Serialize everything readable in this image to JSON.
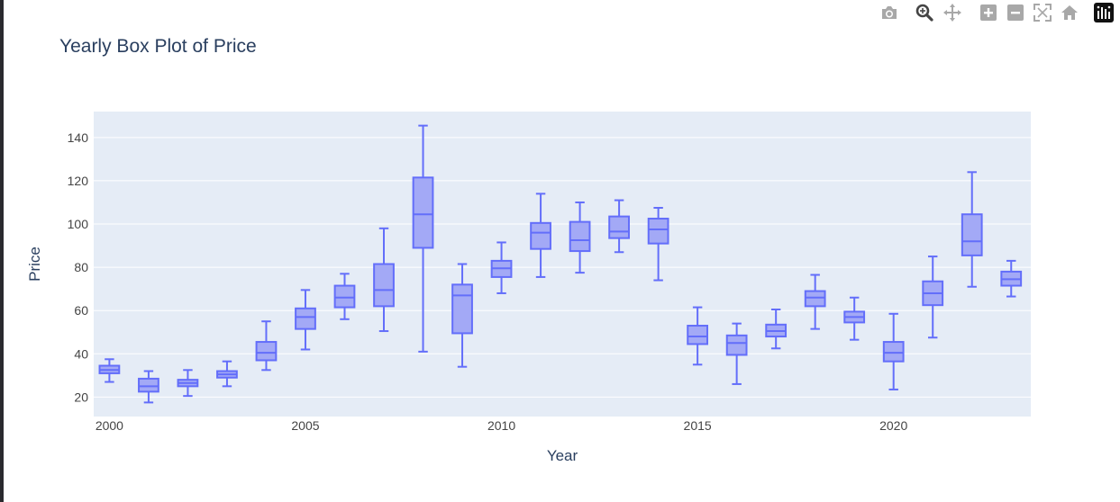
{
  "modebar": {
    "icons": [
      "camera-icon",
      "zoom-icon",
      "pan-icon",
      "zoom-in-icon",
      "zoom-out-icon",
      "autoscale-icon",
      "home-icon",
      "plotly-logo-icon"
    ]
  },
  "colors": {
    "box_line": "#636efa",
    "box_fill": "#a3a9f6",
    "plot_bg": "#e5ecf6",
    "grid": "#ffffff",
    "tick_text": "#444444",
    "title_text": "#2a3f5f"
  },
  "chart_data": {
    "type": "box",
    "title": "Yearly Box Plot of Price",
    "xlabel": "Year",
    "ylabel": "Price",
    "xlim": [
      1999.6,
      2023.5
    ],
    "ylim": [
      11,
      152
    ],
    "xticks": [
      2000,
      2005,
      2010,
      2015,
      2020
    ],
    "yticks": [
      20,
      40,
      60,
      80,
      100,
      120,
      140
    ],
    "grid": true,
    "legend": "none",
    "boxes": [
      {
        "x": 2000,
        "min": 27,
        "q1": 31,
        "median": 32.5,
        "q3": 34.5,
        "max": 37.5
      },
      {
        "x": 2001,
        "min": 17.5,
        "q1": 22.5,
        "median": 25,
        "q3": 28.5,
        "max": 32
      },
      {
        "x": 2002,
        "min": 20.5,
        "q1": 25,
        "median": 26.5,
        "q3": 28,
        "max": 32.5
      },
      {
        "x": 2003,
        "min": 25,
        "q1": 29,
        "median": 30.5,
        "q3": 32,
        "max": 36.5
      },
      {
        "x": 2004,
        "min": 32.5,
        "q1": 37,
        "median": 40.5,
        "q3": 45.5,
        "max": 55
      },
      {
        "x": 2005,
        "min": 42,
        "q1": 51.5,
        "median": 57,
        "q3": 61,
        "max": 69.5
      },
      {
        "x": 2006,
        "min": 56,
        "q1": 61.5,
        "median": 66,
        "q3": 71.5,
        "max": 77
      },
      {
        "x": 2007,
        "min": 50.5,
        "q1": 62,
        "median": 69.5,
        "q3": 81.5,
        "max": 98
      },
      {
        "x": 2008,
        "min": 41,
        "q1": 89,
        "median": 104.5,
        "q3": 121.5,
        "max": 145.5
      },
      {
        "x": 2009,
        "min": 34,
        "q1": 49.5,
        "median": 67,
        "q3": 72,
        "max": 81.5
      },
      {
        "x": 2010,
        "min": 68,
        "q1": 75.5,
        "median": 79.5,
        "q3": 83,
        "max": 91.5
      },
      {
        "x": 2011,
        "min": 75.5,
        "q1": 88.5,
        "median": 96,
        "q3": 100.5,
        "max": 114
      },
      {
        "x": 2012,
        "min": 77.5,
        "q1": 87.5,
        "median": 92.5,
        "q3": 101,
        "max": 110
      },
      {
        "x": 2013,
        "min": 87,
        "q1": 93.5,
        "median": 96.5,
        "q3": 103.5,
        "max": 111
      },
      {
        "x": 2014,
        "min": 74,
        "q1": 91,
        "median": 97.5,
        "q3": 102.5,
        "max": 107.5
      },
      {
        "x": 2015,
        "min": 35,
        "q1": 44.5,
        "median": 48,
        "q3": 53,
        "max": 61.5
      },
      {
        "x": 2016,
        "min": 26,
        "q1": 39.5,
        "median": 45,
        "q3": 48.5,
        "max": 54
      },
      {
        "x": 2017,
        "min": 42.5,
        "q1": 48,
        "median": 50.5,
        "q3": 53.5,
        "max": 60.5
      },
      {
        "x": 2018,
        "min": 51.5,
        "q1": 62,
        "median": 66,
        "q3": 69,
        "max": 76.5
      },
      {
        "x": 2019,
        "min": 46.5,
        "q1": 54.5,
        "median": 57,
        "q3": 59.5,
        "max": 66
      },
      {
        "x": 2020,
        "min": 23.5,
        "q1": 36.5,
        "median": 40.5,
        "q3": 45.5,
        "max": 58.5
      },
      {
        "x": 2021,
        "min": 47.5,
        "q1": 62.5,
        "median": 68,
        "q3": 73.5,
        "max": 85
      },
      {
        "x": 2022,
        "min": 71,
        "q1": 85.5,
        "median": 92,
        "q3": 104.5,
        "max": 124
      },
      {
        "x": 2023,
        "min": 66.5,
        "q1": 71.5,
        "median": 74.5,
        "q3": 78,
        "max": 83
      }
    ]
  }
}
